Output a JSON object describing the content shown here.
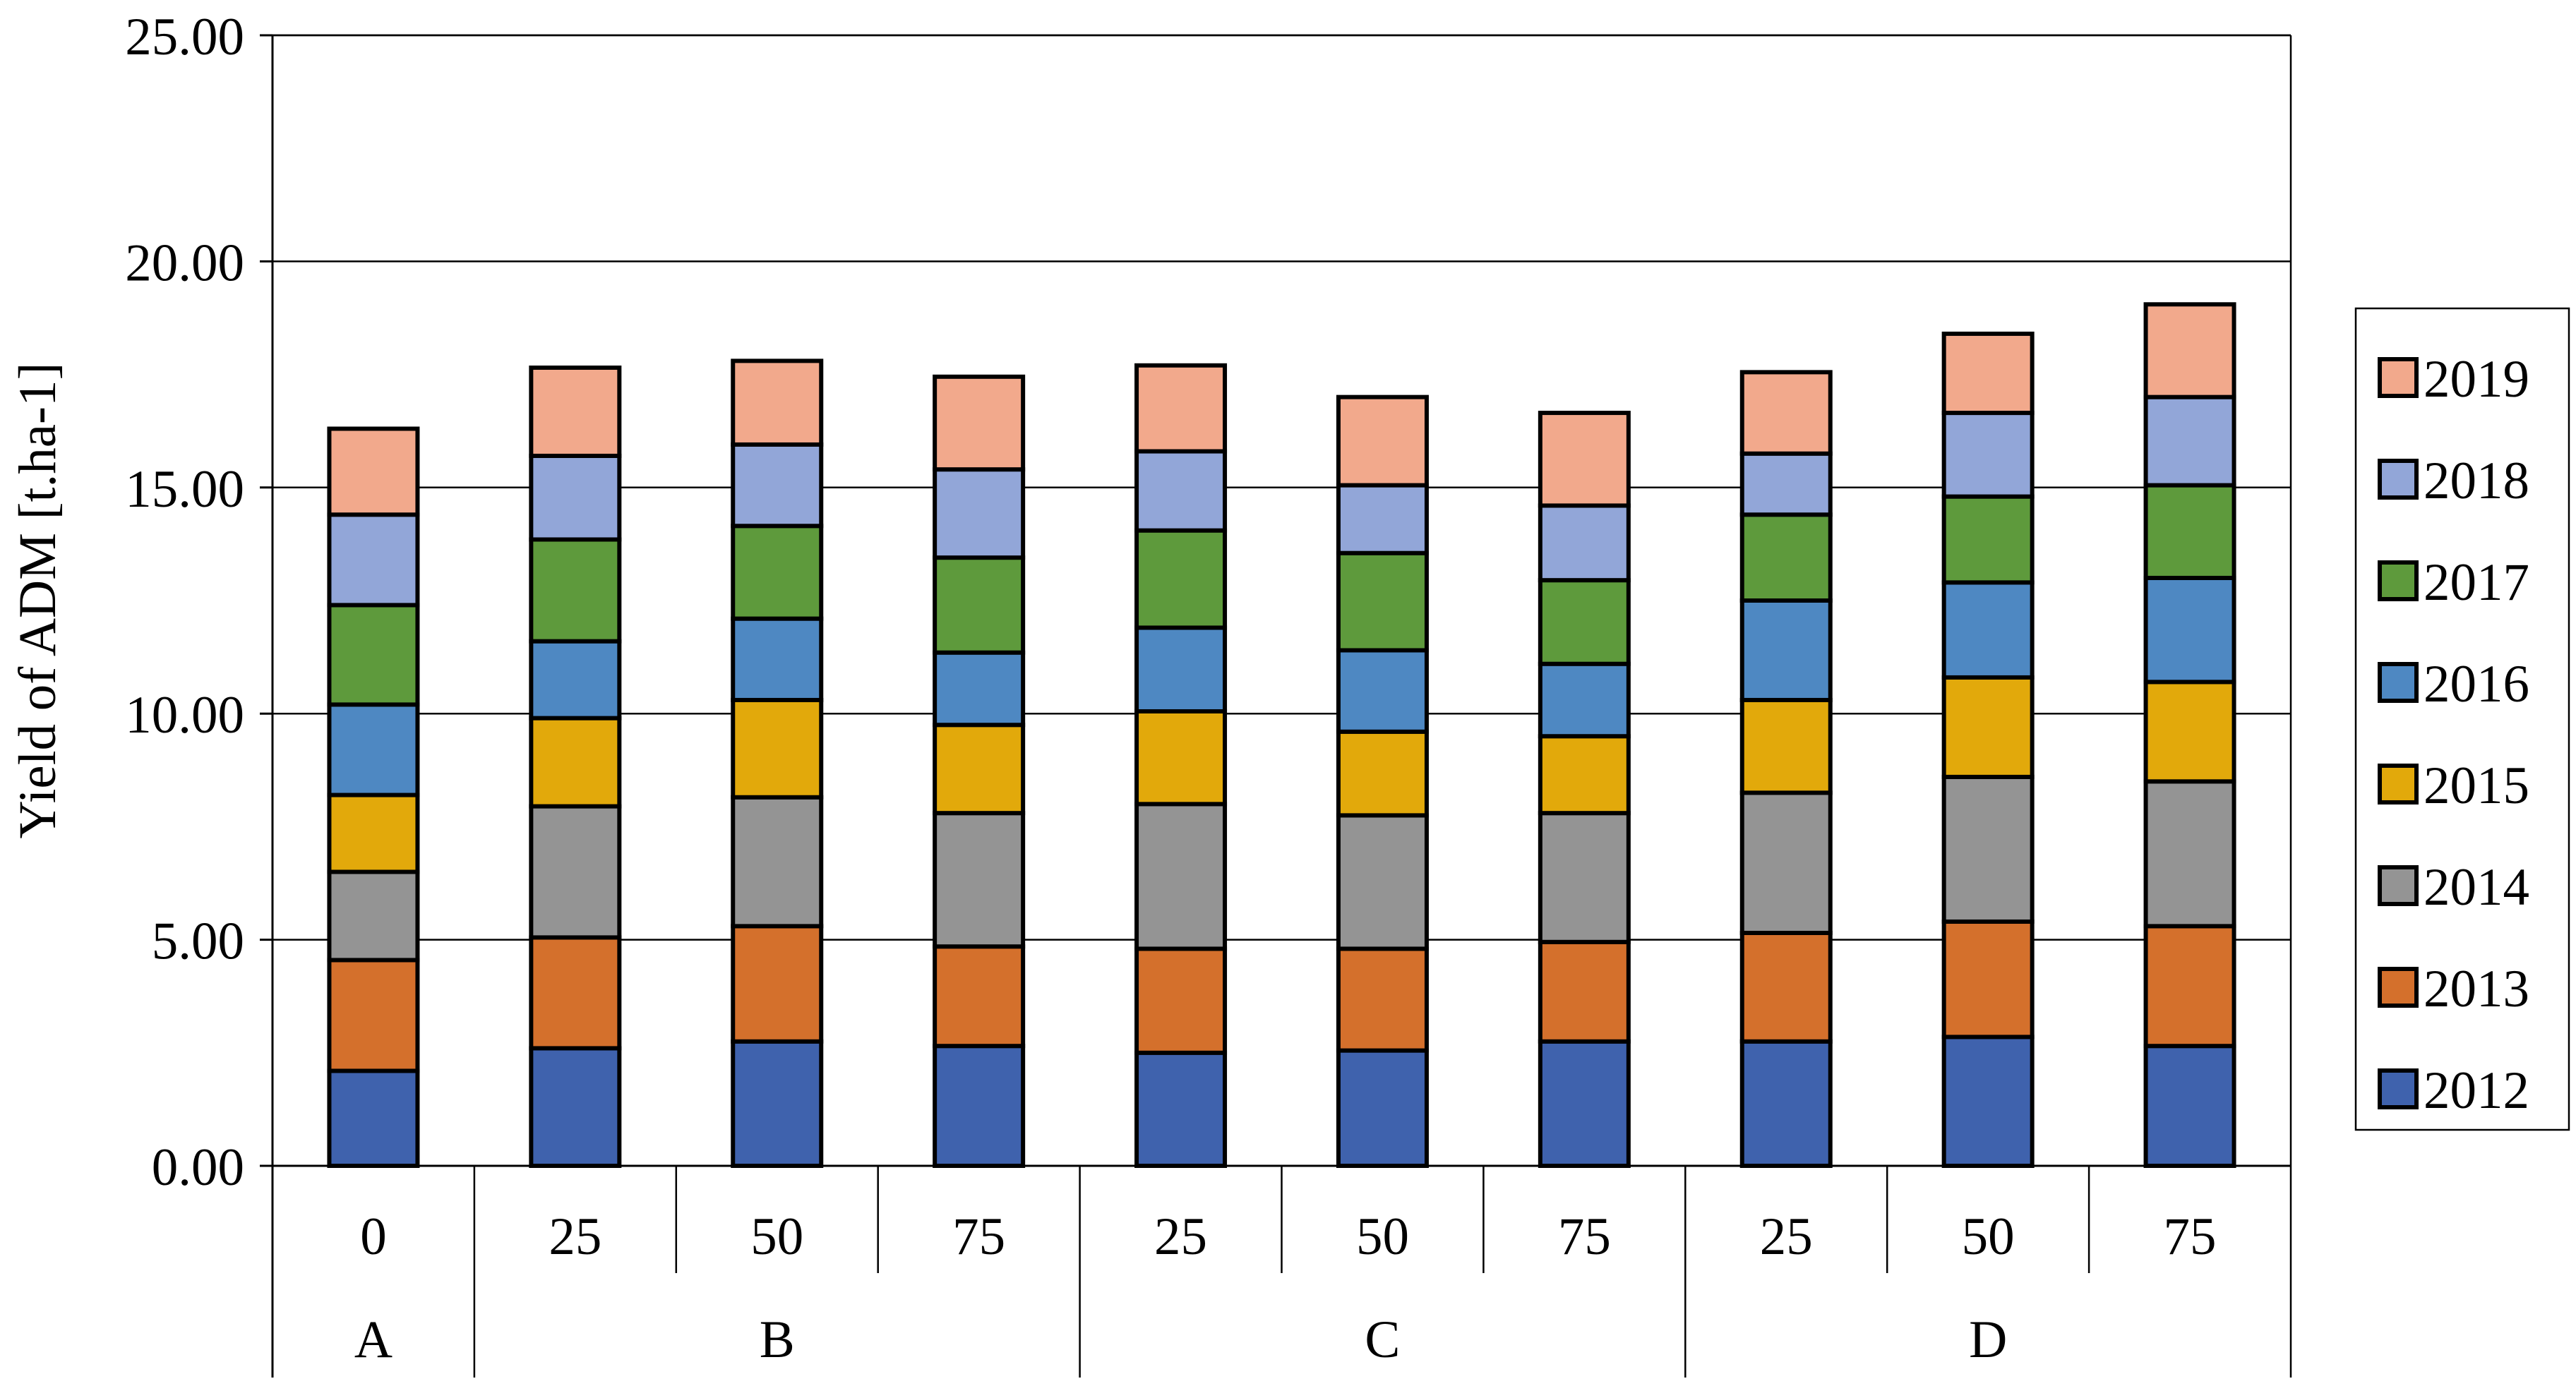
{
  "chart_data": {
    "type": "bar",
    "stacked": true,
    "title": "",
    "xlabel": "",
    "ylabel": "Yield of ADM [t.ha-1]",
    "ylim": [
      0,
      25
    ],
    "yticks": [
      "0.00",
      "5.00",
      "10.00",
      "15.00",
      "20.00",
      "25.00"
    ],
    "grid": true,
    "legend_position": "right",
    "categories": [
      "0",
      "25",
      "50",
      "75",
      "25",
      "50",
      "75",
      "25",
      "50",
      "75"
    ],
    "groups": [
      {
        "label": "A",
        "count": 1
      },
      {
        "label": "B",
        "count": 3
      },
      {
        "label": "C",
        "count": 3
      },
      {
        "label": "D",
        "count": 3
      }
    ],
    "series": [
      {
        "name": "2012",
        "color": "#3F62AD",
        "values": [
          2.1,
          2.6,
          2.75,
          2.65,
          2.5,
          2.55,
          2.75,
          2.75,
          2.85,
          2.65
        ]
      },
      {
        "name": "2013",
        "color": "#D4702C",
        "values": [
          2.45,
          2.45,
          2.55,
          2.2,
          2.3,
          2.25,
          2.2,
          2.4,
          2.55,
          2.65
        ]
      },
      {
        "name": "2014",
        "color": "#949494",
        "values": [
          1.95,
          2.9,
          2.85,
          2.95,
          3.2,
          2.95,
          2.85,
          3.1,
          3.2,
          3.2
        ]
      },
      {
        "name": "2015",
        "color": "#E2A90B",
        "values": [
          1.7,
          1.95,
          2.15,
          1.95,
          2.05,
          1.85,
          1.7,
          2.05,
          2.2,
          2.2
        ]
      },
      {
        "name": "2016",
        "color": "#4E88C2",
        "values": [
          2.0,
          1.7,
          1.8,
          1.6,
          1.85,
          1.8,
          1.6,
          2.2,
          2.1,
          2.3
        ]
      },
      {
        "name": "2017",
        "color": "#5E9A3C",
        "values": [
          2.2,
          2.25,
          2.05,
          2.1,
          2.15,
          2.15,
          1.85,
          1.9,
          1.9,
          2.05
        ]
      },
      {
        "name": "2018",
        "color": "#92A6D8",
        "values": [
          2.0,
          1.85,
          1.8,
          1.95,
          1.75,
          1.5,
          1.65,
          1.35,
          1.85,
          1.95
        ]
      },
      {
        "name": "2019",
        "color": "#F2A98C",
        "values": [
          1.9,
          1.95,
          1.85,
          2.05,
          1.9,
          1.95,
          2.05,
          1.8,
          1.75,
          2.05
        ]
      }
    ]
  }
}
